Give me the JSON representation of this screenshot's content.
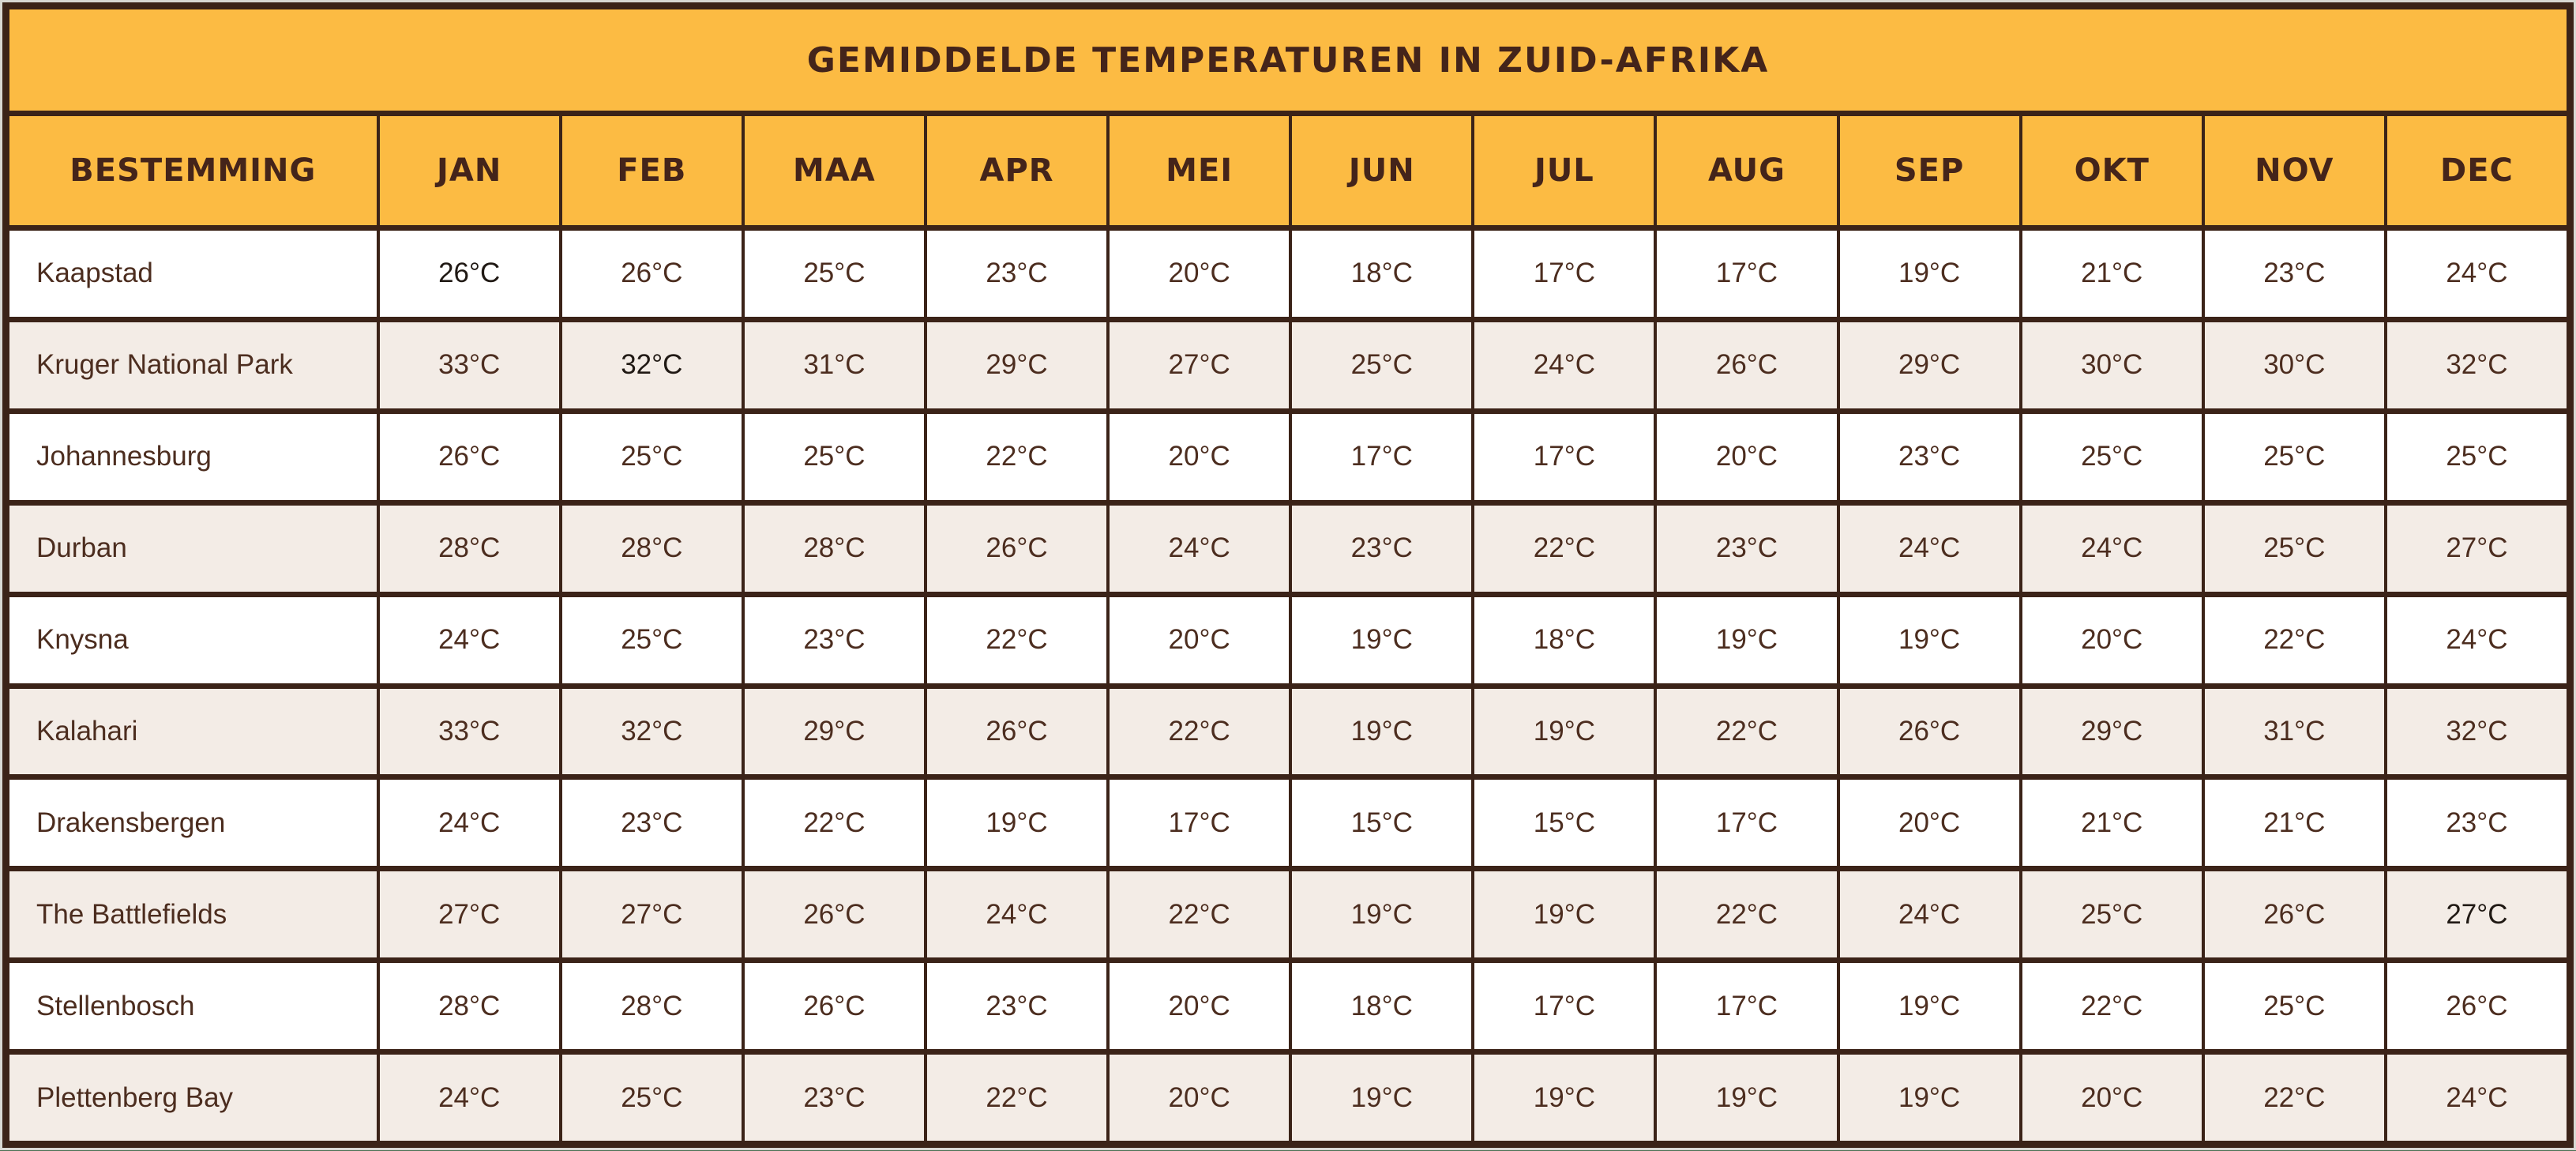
{
  "page": {
    "background_color": "#4D7054",
    "edge_highlight_color": "#D8D8D3",
    "border_color": "#3B2318"
  },
  "table": {
    "title": "GEMIDDELDE TEMPERATUREN IN ZUID-AFRIKA",
    "columns": [
      "BESTEMMING",
      "JAN",
      "FEB",
      "MAA",
      "APR",
      "MEI",
      "JUN",
      "JUL",
      "AUG",
      "SEP",
      "OKT",
      "NOV",
      "DEC"
    ],
    "rows": [
      {
        "name": "Kaapstad",
        "temps": [
          "26°C",
          "26°C",
          "25°C",
          "23°C",
          "20°C",
          "18°C",
          "17°C",
          "17°C",
          "19°C",
          "21°C",
          "23°C",
          "24°C"
        ]
      },
      {
        "name": "Kruger National Park",
        "temps": [
          "33°C",
          "32°C",
          "31°C",
          "29°C",
          "27°C",
          "25°C",
          "24°C",
          "26°C",
          "29°C",
          "30°C",
          "30°C",
          "32°C"
        ]
      },
      {
        "name": "Johannesburg",
        "temps": [
          "26°C",
          "25°C",
          "25°C",
          "22°C",
          "20°C",
          "17°C",
          "17°C",
          "20°C",
          "23°C",
          "25°C",
          "25°C",
          "25°C"
        ]
      },
      {
        "name": "Durban",
        "temps": [
          "28°C",
          "28°C",
          "28°C",
          "26°C",
          "24°C",
          "23°C",
          "22°C",
          "23°C",
          "24°C",
          "24°C",
          "25°C",
          "27°C"
        ]
      },
      {
        "name": "Knysna",
        "temps": [
          "24°C",
          "25°C",
          "23°C",
          "22°C",
          "20°C",
          "19°C",
          "18°C",
          "19°C",
          "19°C",
          "20°C",
          "22°C",
          "24°C"
        ]
      },
      {
        "name": "Kalahari",
        "temps": [
          "33°C",
          "32°C",
          "29°C",
          "26°C",
          "22°C",
          "19°C",
          "19°C",
          "22°C",
          "26°C",
          "29°C",
          "31°C",
          "32°C"
        ]
      },
      {
        "name": "Drakensbergen",
        "temps": [
          "24°C",
          "23°C",
          "22°C",
          "19°C",
          "17°C",
          "15°C",
          "15°C",
          "17°C",
          "20°C",
          "21°C",
          "21°C",
          "23°C"
        ]
      },
      {
        "name": "The Battlefields",
        "temps": [
          "27°C",
          "27°C",
          "26°C",
          "24°C",
          "22°C",
          "19°C",
          "19°C",
          "22°C",
          "24°C",
          "25°C",
          "26°C",
          "27°C"
        ]
      },
      {
        "name": "Stellenbosch",
        "temps": [
          "28°C",
          "28°C",
          "26°C",
          "23°C",
          "20°C",
          "18°C",
          "17°C",
          "17°C",
          "19°C",
          "22°C",
          "25°C",
          "26°C"
        ]
      },
      {
        "name": "Plettenberg Bay",
        "temps": [
          "24°C",
          "25°C",
          "23°C",
          "22°C",
          "20°C",
          "19°C",
          "19°C",
          "19°C",
          "19°C",
          "20°C",
          "22°C",
          "24°C"
        ]
      }
    ],
    "dark_cells": [
      [
        0,
        0
      ],
      [
        1,
        1
      ],
      [
        7,
        11
      ]
    ],
    "row_stripe_colors": {
      "even": "#FFFFFF",
      "odd": "#F3ECE6"
    },
    "header_background": "#FCBB43",
    "header_text_color": "#44241A",
    "cell_text_color": "#4C2D1F",
    "dark_cell_text_color": "#201914"
  },
  "chart_data": {
    "type": "table",
    "title": "Gemiddelde temperaturen in Zuid-Afrika",
    "columns": [
      "Bestemming",
      "Jan",
      "Feb",
      "Maa",
      "Apr",
      "Mei",
      "Jun",
      "Jul",
      "Aug",
      "Sep",
      "Okt",
      "Nov",
      "Dec"
    ],
    "unit": "°C",
    "rows": [
      {
        "bestemming": "Kaapstad",
        "temps_c": [
          26,
          26,
          25,
          23,
          20,
          18,
          17,
          17,
          19,
          21,
          23,
          24
        ]
      },
      {
        "bestemming": "Kruger National Park",
        "temps_c": [
          33,
          32,
          31,
          29,
          27,
          25,
          24,
          26,
          29,
          30,
          30,
          32
        ]
      },
      {
        "bestemming": "Johannesburg",
        "temps_c": [
          26,
          25,
          25,
          22,
          20,
          17,
          17,
          20,
          23,
          25,
          25,
          25
        ]
      },
      {
        "bestemming": "Durban",
        "temps_c": [
          28,
          28,
          28,
          26,
          24,
          23,
          22,
          23,
          24,
          24,
          25,
          27
        ]
      },
      {
        "bestemming": "Knysna",
        "temps_c": [
          24,
          25,
          23,
          22,
          20,
          19,
          18,
          19,
          19,
          20,
          22,
          24
        ]
      },
      {
        "bestemming": "Kalahari",
        "temps_c": [
          33,
          32,
          29,
          26,
          22,
          19,
          19,
          22,
          26,
          29,
          31,
          32
        ]
      },
      {
        "bestemming": "Drakensbergen",
        "temps_c": [
          24,
          23,
          22,
          19,
          17,
          15,
          15,
          17,
          20,
          21,
          21,
          23
        ]
      },
      {
        "bestemming": "The Battlefields",
        "temps_c": [
          27,
          27,
          26,
          24,
          22,
          19,
          19,
          22,
          24,
          25,
          26,
          27
        ]
      },
      {
        "bestemming": "Stellenbosch",
        "temps_c": [
          28,
          28,
          26,
          23,
          20,
          18,
          17,
          17,
          19,
          22,
          25,
          26
        ]
      },
      {
        "bestemming": "Plettenberg Bay",
        "temps_c": [
          24,
          25,
          23,
          22,
          20,
          19,
          19,
          19,
          19,
          20,
          22,
          24
        ]
      }
    ]
  }
}
